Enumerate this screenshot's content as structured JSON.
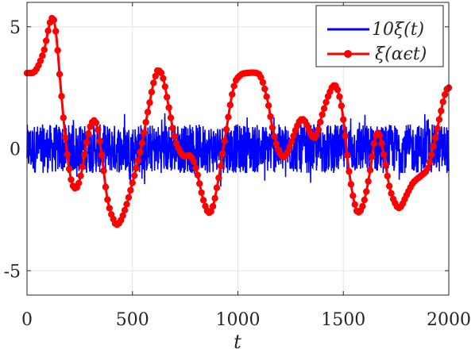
{
  "chart_data": {
    "type": "line",
    "xlabel": "t",
    "xlim": [
      0,
      2000
    ],
    "ylim": [
      -6,
      6
    ],
    "x_ticks": [
      0,
      500,
      1000,
      1500,
      2000
    ],
    "x_tick_labels": [
      "0",
      "500",
      "1000",
      "1500",
      "2000"
    ],
    "y_ticks": [
      -5,
      0,
      5
    ],
    "y_tick_labels": [
      "-5",
      "0",
      "5"
    ],
    "grid": true,
    "legend_position": "top-right",
    "series": [
      {
        "name": "10ξ(t)",
        "color": "#0000ff",
        "style": "line",
        "kind": "noise band",
        "band_typical": [
          -1.0,
          1.0
        ],
        "band_extreme": [
          -1.6,
          1.7
        ]
      },
      {
        "name": "ξ(αϵt)",
        "color": "#ff0000",
        "style": "line-with-dots",
        "points": [
          [
            0,
            3.1
          ],
          [
            40,
            3.2
          ],
          [
            80,
            4.0
          ],
          [
            115,
            5.3
          ],
          [
            135,
            4.9
          ],
          [
            160,
            2.5
          ],
          [
            185,
            0.2
          ],
          [
            210,
            -1.3
          ],
          [
            235,
            -1.6
          ],
          [
            260,
            -0.9
          ],
          [
            285,
            0.4
          ],
          [
            310,
            1.1
          ],
          [
            330,
            1.0
          ],
          [
            350,
            0.0
          ],
          [
            380,
            -2.0
          ],
          [
            410,
            -2.9
          ],
          [
            430,
            -3.1
          ],
          [
            460,
            -2.6
          ],
          [
            500,
            -1.4
          ],
          [
            540,
            0.0
          ],
          [
            580,
            1.8
          ],
          [
            610,
            3.0
          ],
          [
            625,
            3.2
          ],
          [
            645,
            2.9
          ],
          [
            670,
            1.8
          ],
          [
            700,
            0.5
          ],
          [
            725,
            -0.1
          ],
          [
            745,
            -0.3
          ],
          [
            775,
            -0.3
          ],
          [
            800,
            -0.8
          ],
          [
            840,
            -2.2
          ],
          [
            870,
            -2.6
          ],
          [
            900,
            -1.6
          ],
          [
            940,
            0.5
          ],
          [
            980,
            2.5
          ],
          [
            1010,
            3.0
          ],
          [
            1040,
            3.1
          ],
          [
            1090,
            3.1
          ],
          [
            1110,
            2.9
          ],
          [
            1140,
            2.0
          ],
          [
            1170,
            0.6
          ],
          [
            1200,
            -0.2
          ],
          [
            1225,
            -0.3
          ],
          [
            1250,
            0.2
          ],
          [
            1280,
            0.9
          ],
          [
            1300,
            1.2
          ],
          [
            1320,
            1.1
          ],
          [
            1345,
            0.6
          ],
          [
            1370,
            0.5
          ],
          [
            1400,
            1.4
          ],
          [
            1435,
            2.3
          ],
          [
            1460,
            2.6
          ],
          [
            1480,
            2.2
          ],
          [
            1500,
            1.2
          ],
          [
            1525,
            -0.8
          ],
          [
            1555,
            -2.3
          ],
          [
            1575,
            -2.6
          ],
          [
            1600,
            -2.1
          ],
          [
            1625,
            -1.0
          ],
          [
            1650,
            0.4
          ],
          [
            1670,
            0.6
          ],
          [
            1690,
            -0.2
          ],
          [
            1720,
            -1.6
          ],
          [
            1750,
            -2.3
          ],
          [
            1770,
            -2.4
          ],
          [
            1800,
            -1.9
          ],
          [
            1830,
            -1.4
          ],
          [
            1870,
            -1.1
          ],
          [
            1900,
            -0.8
          ],
          [
            1930,
            0.2
          ],
          [
            1960,
            1.4
          ],
          [
            1985,
            2.3
          ],
          [
            2000,
            2.5
          ]
        ]
      }
    ]
  }
}
